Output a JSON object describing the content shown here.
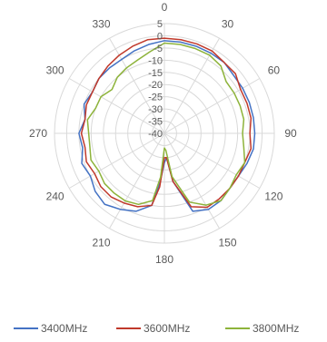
{
  "chart_data": {
    "type": "line",
    "subtype": "radar",
    "title": "",
    "angle_labels": [
      "0",
      "30",
      "60",
      "90",
      "120",
      "150",
      "180",
      "210",
      "240",
      "270",
      "300",
      "330"
    ],
    "radial_tick_labels": [
      "5",
      "0",
      "-5",
      "-10",
      "-15",
      "-20",
      "-25",
      "-30",
      "-35",
      "-40"
    ],
    "radial_range": [
      -40,
      5
    ],
    "grid": true,
    "legend": "bottom",
    "x_degrees": [
      0,
      10,
      20,
      30,
      40,
      50,
      60,
      70,
      80,
      90,
      100,
      110,
      120,
      130,
      140,
      150,
      160,
      170,
      175,
      180,
      185,
      190,
      200,
      210,
      220,
      230,
      240,
      250,
      260,
      270,
      280,
      290,
      300,
      310,
      320,
      330,
      340,
      350
    ],
    "series": [
      {
        "name": "3400MHz",
        "color": "#4472c4",
        "values": [
          -2,
          -2,
          -2,
          -2,
          -2,
          -3,
          -3,
          -3,
          -3,
          -3,
          -3,
          -4,
          -5,
          -5,
          -4,
          -4,
          -6,
          -20,
          -30,
          -28,
          -20,
          -10,
          -6,
          -4,
          -2,
          -3,
          -5,
          -4,
          -6,
          -5,
          -7,
          -5,
          -6,
          -5,
          -5,
          -5,
          -4,
          -3
        ]
      },
      {
        "name": "3600MHz",
        "color": "#c0392b",
        "values": [
          -1,
          -1,
          -1,
          -1,
          -2,
          -2,
          -4,
          -4,
          -4,
          -5,
          -4,
          -5,
          -5,
          -5,
          -5,
          -5,
          -8,
          -20,
          -30,
          -30,
          -18,
          -10,
          -8,
          -7,
          -6,
          -6,
          -7,
          -6,
          -7,
          -6,
          -7,
          -6,
          -6,
          -5,
          -4,
          -3,
          -2,
          -1
        ]
      },
      {
        "name": "3800MHz",
        "color": "#8db33a",
        "values": [
          -3,
          -3,
          -3,
          -3,
          -4,
          -7,
          -7,
          -7,
          -7,
          -8,
          -7,
          -5,
          -6,
          -5,
          -4,
          -6,
          -10,
          -22,
          -33,
          -34,
          -22,
          -12,
          -9,
          -8,
          -8,
          -8,
          -9,
          -8,
          -9,
          -9,
          -8,
          -10,
          -10,
          -12,
          -10,
          -9,
          -8,
          -6
        ]
      }
    ]
  }
}
